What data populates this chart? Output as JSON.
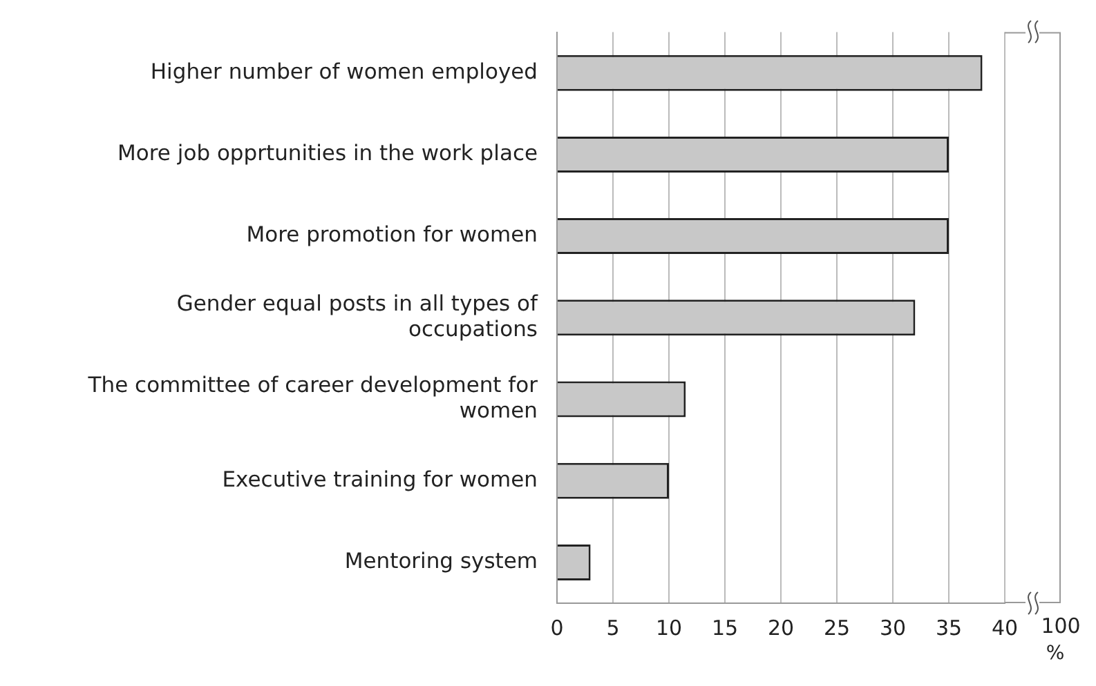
{
  "chart_data": {
    "type": "bar",
    "orientation": "horizontal",
    "categories": [
      "Higher number of women employed",
      "More job opprtunities in the work place",
      "More promotion for women",
      "Gender equal posts in all types of occupations",
      "The committee of career development for women",
      "Executive training for women",
      "Mentoring system"
    ],
    "values": [
      38,
      35,
      35,
      32,
      11.5,
      10,
      3
    ],
    "color": "#c8c8c8",
    "xlim": [
      0,
      40
    ],
    "xticks": [
      0,
      5,
      10,
      15,
      20,
      25,
      30,
      35,
      40
    ],
    "xlabel": "%",
    "grid": "x",
    "legend": false,
    "annotations": [
      "100"
    ]
  }
}
